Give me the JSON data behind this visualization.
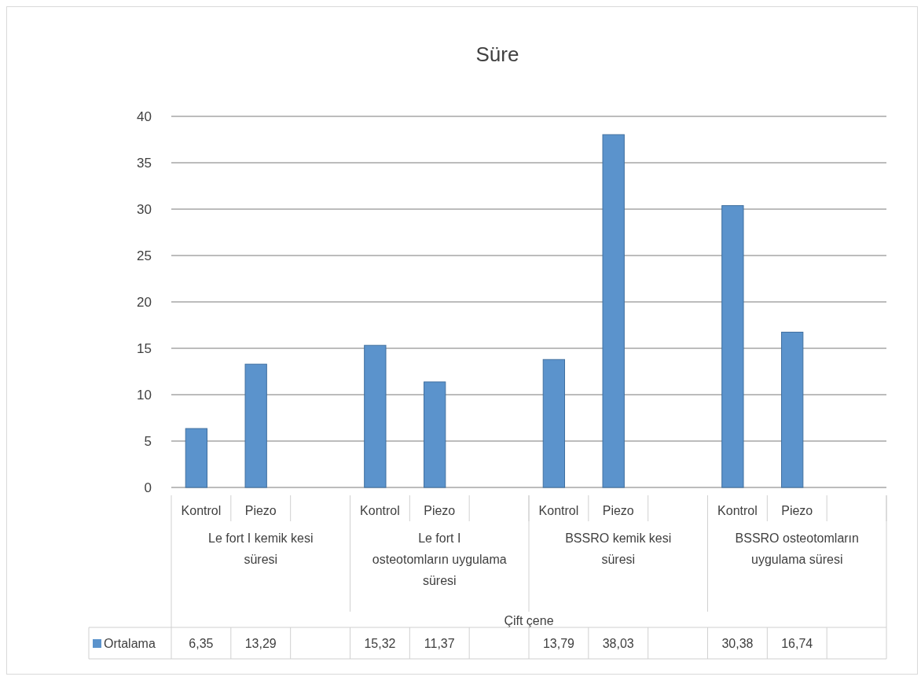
{
  "chart_data": {
    "type": "bar",
    "title": "Süre",
    "categories": [
      "Kontrol",
      "Piezo",
      null,
      "Kontrol",
      "Piezo",
      null,
      "Kontrol",
      "Piezo",
      null,
      "Kontrol",
      "Piezo",
      null
    ],
    "series": [
      {
        "name": "Ortalama",
        "color": "#5b93cc",
        "values": [
          6.35,
          13.29,
          null,
          15.32,
          11.37,
          null,
          13.79,
          38.03,
          null,
          30.38,
          16.74,
          null
        ],
        "value_labels": [
          "6,35",
          "13,29",
          null,
          "15,32",
          "11,37",
          null,
          "13,79",
          "38,03",
          null,
          "30,38",
          "16,74",
          null
        ]
      }
    ],
    "annotations": [
      "Le fort I kemik kesi süresi",
      "Le fort I osteotomların uygulama süresi",
      "BSSRO kemik kesi süresi",
      "BSSRO osteotomların uygulama süresi",
      "Çift çene"
    ],
    "ylim": [
      0,
      40
    ],
    "yticks": [
      0,
      5,
      10,
      15,
      20,
      25,
      30,
      35,
      40
    ],
    "grid": "y",
    "legend": "bottom"
  }
}
